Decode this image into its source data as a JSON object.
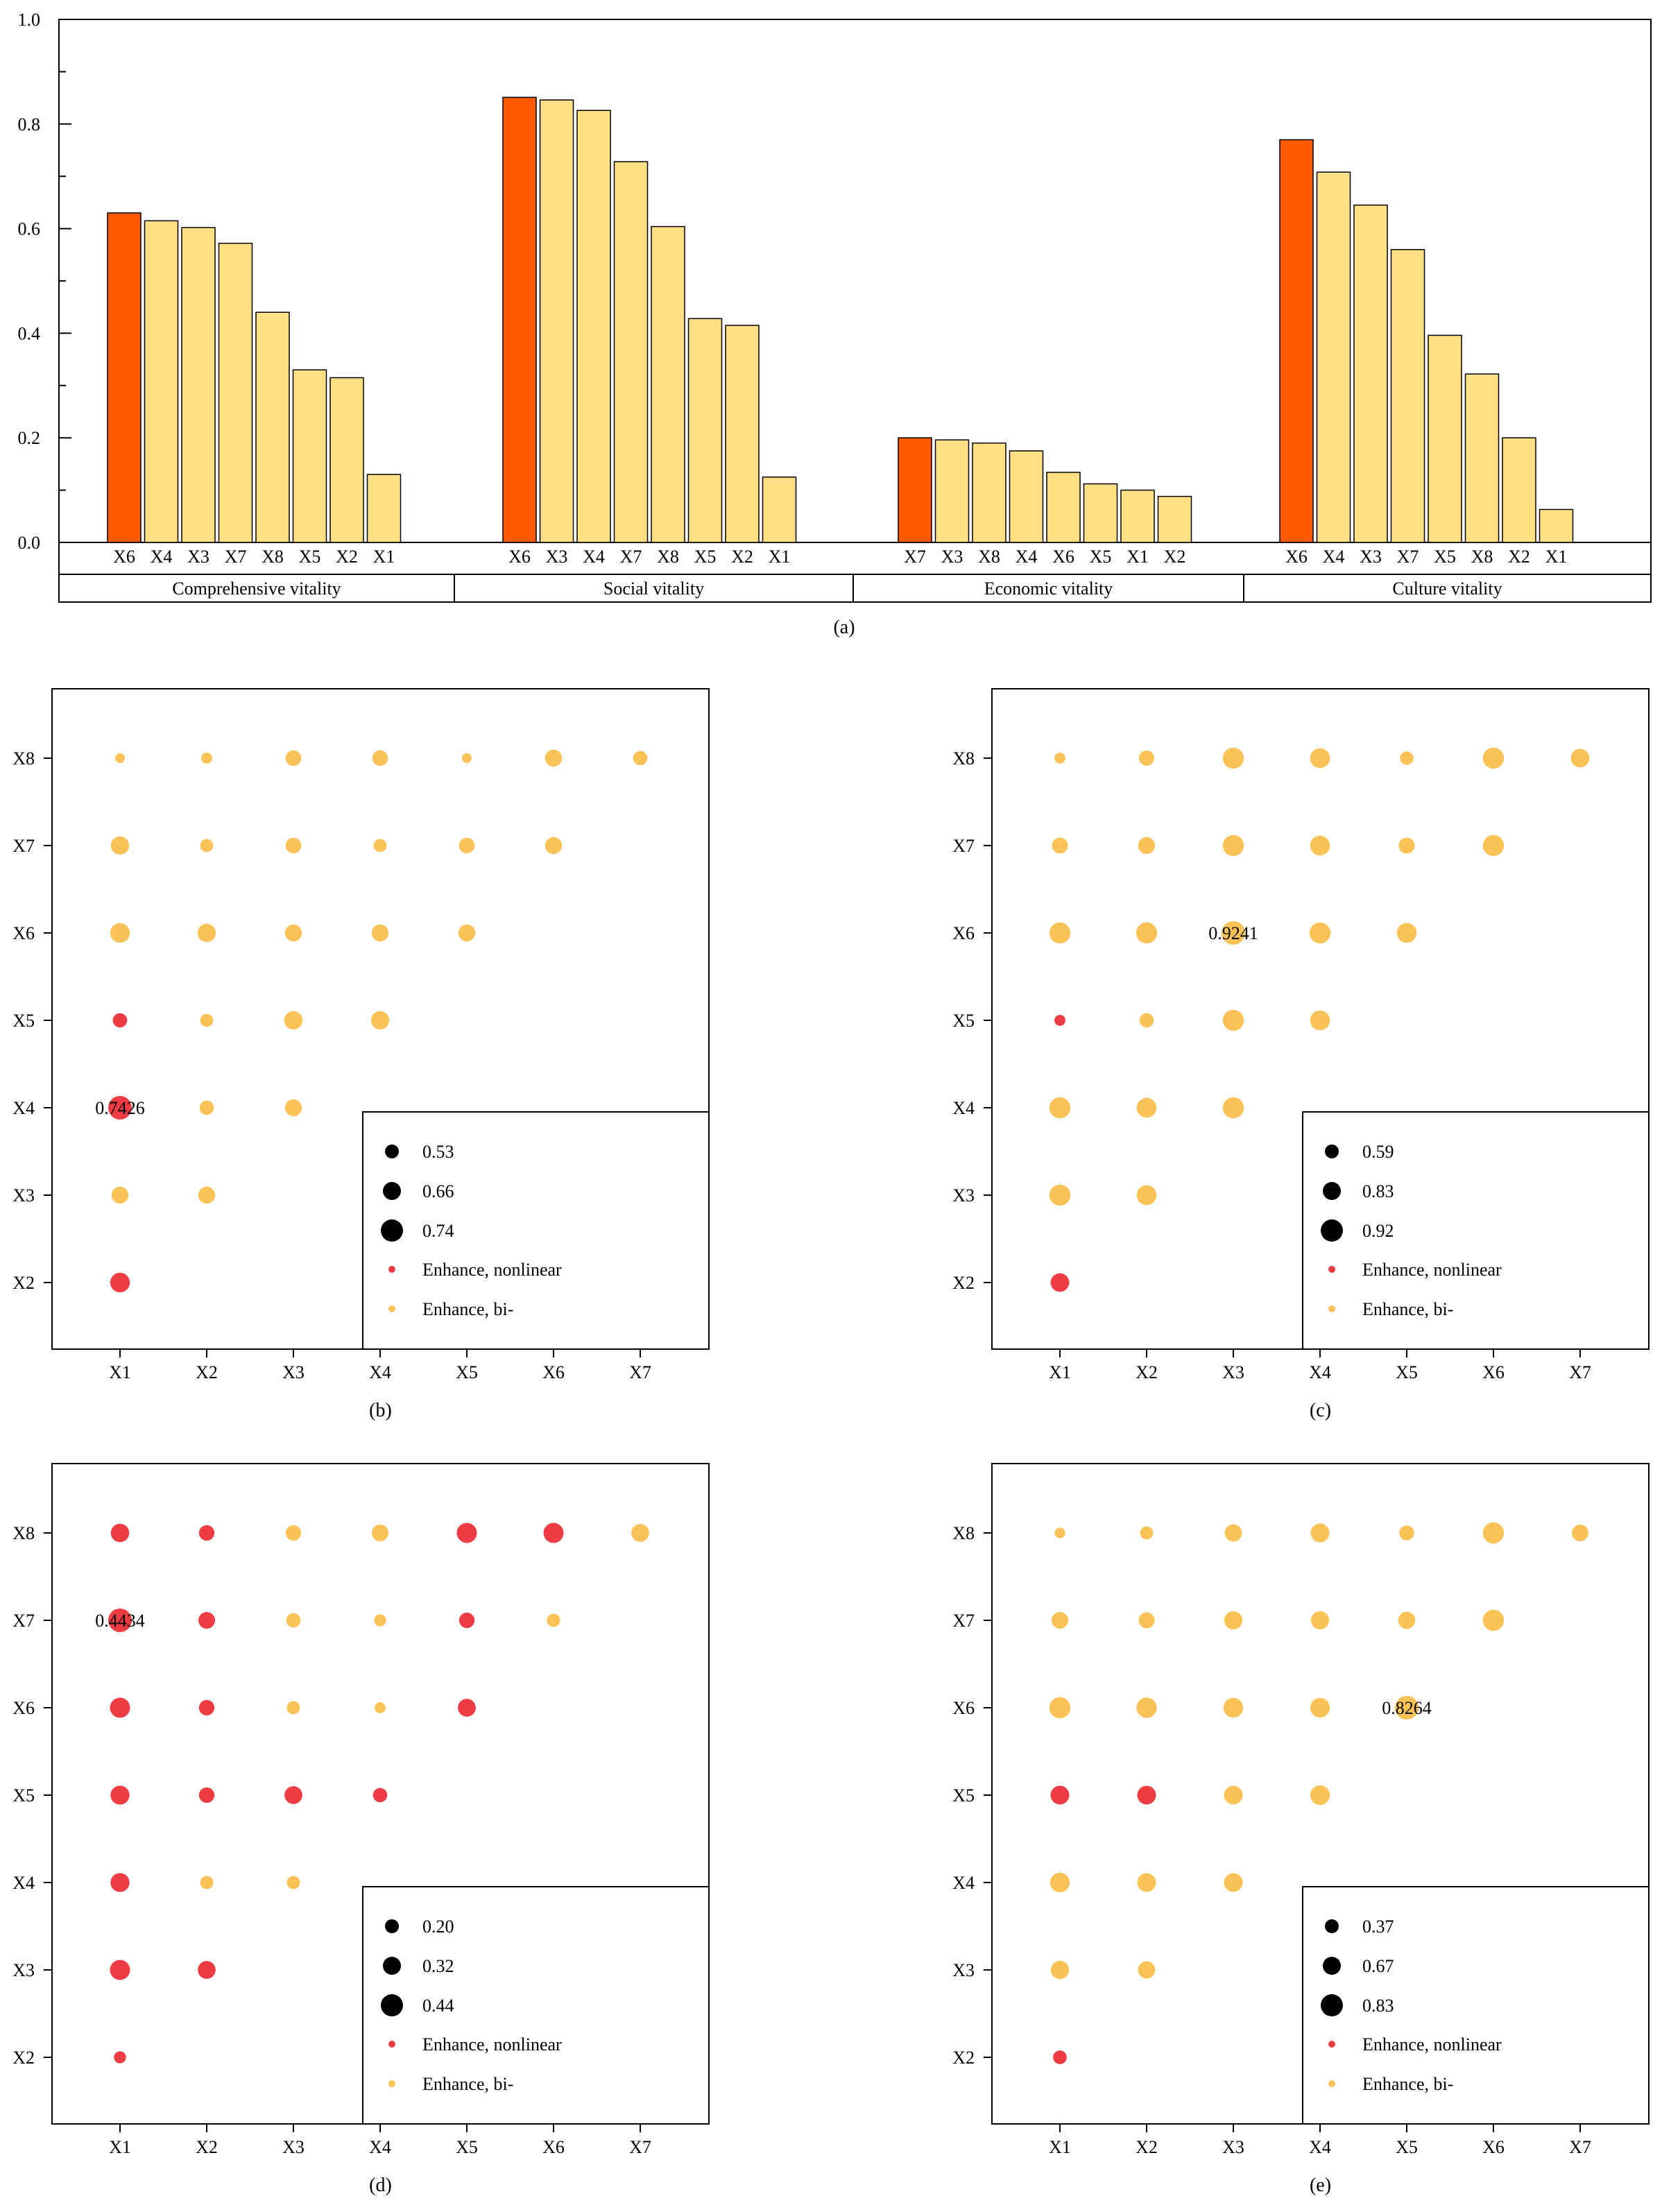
{
  "chart_data": [
    {
      "type": "bar",
      "panel": "(a)",
      "ylim": [
        0,
        1.0
      ],
      "yticks": [
        "0.0",
        "0.2",
        "0.4",
        "0.6",
        "0.8",
        "1.0"
      ],
      "colors": {
        "top": "#ff5a00",
        "other": "#ffe084"
      },
      "groups": [
        {
          "name": "Comprehensive vitality",
          "categories": [
            "X6",
            "X4",
            "X3",
            "X7",
            "X8",
            "X5",
            "X2",
            "X1"
          ],
          "values": [
            0.63,
            0.615,
            0.602,
            0.572,
            0.44,
            0.33,
            0.315,
            0.13
          ]
        },
        {
          "name": "Social vitality",
          "categories": [
            "X6",
            "X3",
            "X4",
            "X7",
            "X8",
            "X5",
            "X2",
            "X1"
          ],
          "values": [
            0.851,
            0.846,
            0.826,
            0.728,
            0.604,
            0.428,
            0.415,
            0.125
          ]
        },
        {
          "name": "Economic vitality",
          "categories": [
            "X7",
            "X3",
            "X8",
            "X4",
            "X6",
            "X5",
            "X1",
            "X2"
          ],
          "values": [
            0.2,
            0.196,
            0.19,
            0.175,
            0.134,
            0.112,
            0.1,
            0.088
          ]
        },
        {
          "name": "Culture vitality",
          "categories": [
            "X6",
            "X4",
            "X3",
            "X7",
            "X5",
            "X8",
            "X2",
            "X1"
          ],
          "values": [
            0.77,
            0.708,
            0.645,
            0.56,
            0.396,
            0.322,
            0.2,
            0.063
          ]
        }
      ]
    },
    {
      "type": "scatter",
      "panel": "(b)",
      "xcats": [
        "X1",
        "X2",
        "X3",
        "X4",
        "X5",
        "X6",
        "X7"
      ],
      "ycats": [
        "X8",
        "X7",
        "X6",
        "X5",
        "X4",
        "X3",
        "X2"
      ],
      "annotation": {
        "x": "X1",
        "y": "X4",
        "text": "0.7426"
      },
      "size_range": [
        0.53,
        0.74
      ],
      "size_legend": [
        "0.53",
        "0.66",
        "0.74"
      ],
      "type_legend": [
        "Enhance, nonlinear",
        "Enhance, bi-"
      ],
      "points": [
        {
          "x": "X1",
          "y": "X8",
          "v": 0.53,
          "t": "bi"
        },
        {
          "x": "X2",
          "y": "X8",
          "v": 0.55,
          "t": "bi"
        },
        {
          "x": "X3",
          "y": "X8",
          "v": 0.62,
          "t": "bi"
        },
        {
          "x": "X4",
          "y": "X8",
          "v": 0.62,
          "t": "bi"
        },
        {
          "x": "X5",
          "y": "X8",
          "v": 0.53,
          "t": "bi"
        },
        {
          "x": "X6",
          "y": "X8",
          "v": 0.64,
          "t": "bi"
        },
        {
          "x": "X7",
          "y": "X8",
          "v": 0.6,
          "t": "bi"
        },
        {
          "x": "X1",
          "y": "X7",
          "v": 0.66,
          "t": "bi"
        },
        {
          "x": "X2",
          "y": "X7",
          "v": 0.58,
          "t": "bi"
        },
        {
          "x": "X3",
          "y": "X7",
          "v": 0.62,
          "t": "bi"
        },
        {
          "x": "X4",
          "y": "X7",
          "v": 0.58,
          "t": "bi"
        },
        {
          "x": "X5",
          "y": "X7",
          "v": 0.62,
          "t": "bi"
        },
        {
          "x": "X6",
          "y": "X7",
          "v": 0.64,
          "t": "bi"
        },
        {
          "x": "X1",
          "y": "X6",
          "v": 0.68,
          "t": "bi"
        },
        {
          "x": "X2",
          "y": "X6",
          "v": 0.66,
          "t": "bi"
        },
        {
          "x": "X3",
          "y": "X6",
          "v": 0.64,
          "t": "bi"
        },
        {
          "x": "X4",
          "y": "X6",
          "v": 0.64,
          "t": "bi"
        },
        {
          "x": "X5",
          "y": "X6",
          "v": 0.64,
          "t": "bi"
        },
        {
          "x": "X1",
          "y": "X5",
          "v": 0.6,
          "t": "nonlinear"
        },
        {
          "x": "X2",
          "y": "X5",
          "v": 0.58,
          "t": "bi"
        },
        {
          "x": "X3",
          "y": "X5",
          "v": 0.66,
          "t": "bi"
        },
        {
          "x": "X4",
          "y": "X5",
          "v": 0.66,
          "t": "bi"
        },
        {
          "x": "X1",
          "y": "X4",
          "v": 0.74,
          "t": "nonlinear"
        },
        {
          "x": "X2",
          "y": "X4",
          "v": 0.6,
          "t": "bi"
        },
        {
          "x": "X3",
          "y": "X4",
          "v": 0.64,
          "t": "bi"
        },
        {
          "x": "X1",
          "y": "X3",
          "v": 0.64,
          "t": "bi"
        },
        {
          "x": "X2",
          "y": "X3",
          "v": 0.64,
          "t": "bi"
        },
        {
          "x": "X1",
          "y": "X2",
          "v": 0.68,
          "t": "nonlinear"
        }
      ]
    },
    {
      "type": "scatter",
      "panel": "(c)",
      "xcats": [
        "X1",
        "X2",
        "X3",
        "X4",
        "X5",
        "X6",
        "X7"
      ],
      "ycats": [
        "X8",
        "X7",
        "X6",
        "X5",
        "X4",
        "X3",
        "X2"
      ],
      "annotation": {
        "x": "X3",
        "y": "X6",
        "text": "0.9241"
      },
      "size_range": [
        0.59,
        0.92
      ],
      "size_legend": [
        "0.59",
        "0.83",
        "0.92"
      ],
      "type_legend": [
        "Enhance, nonlinear",
        "Enhance, bi-"
      ],
      "points": [
        {
          "x": "X1",
          "y": "X8",
          "v": 0.62,
          "t": "bi"
        },
        {
          "x": "X2",
          "y": "X8",
          "v": 0.72,
          "t": "bi"
        },
        {
          "x": "X3",
          "y": "X8",
          "v": 0.86,
          "t": "bi"
        },
        {
          "x": "X4",
          "y": "X8",
          "v": 0.83,
          "t": "bi"
        },
        {
          "x": "X5",
          "y": "X8",
          "v": 0.68,
          "t": "bi"
        },
        {
          "x": "X6",
          "y": "X8",
          "v": 0.86,
          "t": "bi"
        },
        {
          "x": "X7",
          "y": "X8",
          "v": 0.8,
          "t": "bi"
        },
        {
          "x": "X1",
          "y": "X7",
          "v": 0.74,
          "t": "bi"
        },
        {
          "x": "X2",
          "y": "X7",
          "v": 0.76,
          "t": "bi"
        },
        {
          "x": "X3",
          "y": "X7",
          "v": 0.86,
          "t": "bi"
        },
        {
          "x": "X4",
          "y": "X7",
          "v": 0.83,
          "t": "bi"
        },
        {
          "x": "X5",
          "y": "X7",
          "v": 0.74,
          "t": "bi"
        },
        {
          "x": "X6",
          "y": "X7",
          "v": 0.86,
          "t": "bi"
        },
        {
          "x": "X1",
          "y": "X6",
          "v": 0.86,
          "t": "bi"
        },
        {
          "x": "X2",
          "y": "X6",
          "v": 0.86,
          "t": "bi"
        },
        {
          "x": "X3",
          "y": "X6",
          "v": 0.92,
          "t": "bi"
        },
        {
          "x": "X4",
          "y": "X6",
          "v": 0.86,
          "t": "bi"
        },
        {
          "x": "X5",
          "y": "X6",
          "v": 0.83,
          "t": "bi"
        },
        {
          "x": "X1",
          "y": "X5",
          "v": 0.62,
          "t": "nonlinear"
        },
        {
          "x": "X2",
          "y": "X5",
          "v": 0.7,
          "t": "bi"
        },
        {
          "x": "X3",
          "y": "X5",
          "v": 0.86,
          "t": "bi"
        },
        {
          "x": "X4",
          "y": "X5",
          "v": 0.83,
          "t": "bi"
        },
        {
          "x": "X1",
          "y": "X4",
          "v": 0.86,
          "t": "bi"
        },
        {
          "x": "X2",
          "y": "X4",
          "v": 0.83,
          "t": "bi"
        },
        {
          "x": "X3",
          "y": "X4",
          "v": 0.86,
          "t": "bi"
        },
        {
          "x": "X1",
          "y": "X3",
          "v": 0.86,
          "t": "bi"
        },
        {
          "x": "X2",
          "y": "X3",
          "v": 0.83,
          "t": "bi"
        },
        {
          "x": "X1",
          "y": "X2",
          "v": 0.8,
          "t": "nonlinear"
        }
      ]
    },
    {
      "type": "scatter",
      "panel": "(d)",
      "xcats": [
        "X1",
        "X2",
        "X3",
        "X4",
        "X5",
        "X6",
        "X7"
      ],
      "ycats": [
        "X8",
        "X7",
        "X6",
        "X5",
        "X4",
        "X3",
        "X2"
      ],
      "annotation": {
        "x": "X1",
        "y": "X7",
        "text": "0.4434"
      },
      "size_range": [
        0.2,
        0.44
      ],
      "size_legend": [
        "0.20",
        "0.32",
        "0.44"
      ],
      "type_legend": [
        "Enhance, nonlinear",
        "Enhance, bi-"
      ],
      "points": [
        {
          "x": "X1",
          "y": "X8",
          "v": 0.35,
          "t": "nonlinear"
        },
        {
          "x": "X2",
          "y": "X8",
          "v": 0.3,
          "t": "nonlinear"
        },
        {
          "x": "X3",
          "y": "X8",
          "v": 0.3,
          "t": "bi"
        },
        {
          "x": "X4",
          "y": "X8",
          "v": 0.32,
          "t": "bi"
        },
        {
          "x": "X5",
          "y": "X8",
          "v": 0.38,
          "t": "nonlinear"
        },
        {
          "x": "X6",
          "y": "X8",
          "v": 0.38,
          "t": "nonlinear"
        },
        {
          "x": "X7",
          "y": "X8",
          "v": 0.34,
          "t": "bi"
        },
        {
          "x": "X1",
          "y": "X7",
          "v": 0.44,
          "t": "nonlinear"
        },
        {
          "x": "X2",
          "y": "X7",
          "v": 0.32,
          "t": "nonlinear"
        },
        {
          "x": "X3",
          "y": "X7",
          "v": 0.28,
          "t": "bi"
        },
        {
          "x": "X4",
          "y": "X7",
          "v": 0.24,
          "t": "bi"
        },
        {
          "x": "X5",
          "y": "X7",
          "v": 0.3,
          "t": "nonlinear"
        },
        {
          "x": "X6",
          "y": "X7",
          "v": 0.26,
          "t": "bi"
        },
        {
          "x": "X1",
          "y": "X6",
          "v": 0.38,
          "t": "nonlinear"
        },
        {
          "x": "X2",
          "y": "X6",
          "v": 0.3,
          "t": "nonlinear"
        },
        {
          "x": "X3",
          "y": "X6",
          "v": 0.26,
          "t": "bi"
        },
        {
          "x": "X4",
          "y": "X6",
          "v": 0.22,
          "t": "bi"
        },
        {
          "x": "X5",
          "y": "X6",
          "v": 0.34,
          "t": "nonlinear"
        },
        {
          "x": "X1",
          "y": "X5",
          "v": 0.36,
          "t": "nonlinear"
        },
        {
          "x": "X2",
          "y": "X5",
          "v": 0.3,
          "t": "nonlinear"
        },
        {
          "x": "X3",
          "y": "X5",
          "v": 0.34,
          "t": "nonlinear"
        },
        {
          "x": "X4",
          "y": "X5",
          "v": 0.28,
          "t": "nonlinear"
        },
        {
          "x": "X1",
          "y": "X4",
          "v": 0.36,
          "t": "nonlinear"
        },
        {
          "x": "X2",
          "y": "X4",
          "v": 0.26,
          "t": "bi"
        },
        {
          "x": "X3",
          "y": "X4",
          "v": 0.26,
          "t": "bi"
        },
        {
          "x": "X1",
          "y": "X3",
          "v": 0.38,
          "t": "nonlinear"
        },
        {
          "x": "X2",
          "y": "X3",
          "v": 0.34,
          "t": "nonlinear"
        },
        {
          "x": "X1",
          "y": "X2",
          "v": 0.24,
          "t": "nonlinear"
        }
      ]
    },
    {
      "type": "scatter",
      "panel": "(e)",
      "xcats": [
        "X1",
        "X2",
        "X3",
        "X4",
        "X5",
        "X6",
        "X7"
      ],
      "ycats": [
        "X8",
        "X7",
        "X6",
        "X5",
        "X4",
        "X3",
        "X2"
      ],
      "annotation": {
        "x": "X5",
        "y": "X6",
        "text": "0.8264"
      },
      "size_range": [
        0.37,
        0.83
      ],
      "size_legend": [
        "0.37",
        "0.67",
        "0.83"
      ],
      "type_legend": [
        "Enhance, nonlinear",
        "Enhance, bi-"
      ],
      "points": [
        {
          "x": "X1",
          "y": "X8",
          "v": 0.4,
          "t": "bi"
        },
        {
          "x": "X2",
          "y": "X8",
          "v": 0.48,
          "t": "bi"
        },
        {
          "x": "X3",
          "y": "X8",
          "v": 0.62,
          "t": "bi"
        },
        {
          "x": "X4",
          "y": "X8",
          "v": 0.67,
          "t": "bi"
        },
        {
          "x": "X5",
          "y": "X8",
          "v": 0.54,
          "t": "bi"
        },
        {
          "x": "X6",
          "y": "X8",
          "v": 0.75,
          "t": "bi"
        },
        {
          "x": "X7",
          "y": "X8",
          "v": 0.6,
          "t": "bi"
        },
        {
          "x": "X1",
          "y": "X7",
          "v": 0.6,
          "t": "bi"
        },
        {
          "x": "X2",
          "y": "X7",
          "v": 0.58,
          "t": "bi"
        },
        {
          "x": "X3",
          "y": "X7",
          "v": 0.65,
          "t": "bi"
        },
        {
          "x": "X4",
          "y": "X7",
          "v": 0.65,
          "t": "bi"
        },
        {
          "x": "X5",
          "y": "X7",
          "v": 0.62,
          "t": "bi"
        },
        {
          "x": "X6",
          "y": "X7",
          "v": 0.75,
          "t": "bi"
        },
        {
          "x": "X1",
          "y": "X6",
          "v": 0.75,
          "t": "bi"
        },
        {
          "x": "X2",
          "y": "X6",
          "v": 0.72,
          "t": "bi"
        },
        {
          "x": "X3",
          "y": "X6",
          "v": 0.7,
          "t": "bi"
        },
        {
          "x": "X4",
          "y": "X6",
          "v": 0.7,
          "t": "bi"
        },
        {
          "x": "X5",
          "y": "X6",
          "v": 0.83,
          "t": "bi"
        },
        {
          "x": "X1",
          "y": "X5",
          "v": 0.67,
          "t": "nonlinear"
        },
        {
          "x": "X2",
          "y": "X5",
          "v": 0.67,
          "t": "nonlinear"
        },
        {
          "x": "X3",
          "y": "X5",
          "v": 0.67,
          "t": "bi"
        },
        {
          "x": "X4",
          "y": "X5",
          "v": 0.7,
          "t": "bi"
        },
        {
          "x": "X1",
          "y": "X4",
          "v": 0.7,
          "t": "bi"
        },
        {
          "x": "X2",
          "y": "X4",
          "v": 0.67,
          "t": "bi"
        },
        {
          "x": "X3",
          "y": "X4",
          "v": 0.67,
          "t": "bi"
        },
        {
          "x": "X1",
          "y": "X3",
          "v": 0.65,
          "t": "bi"
        },
        {
          "x": "X2",
          "y": "X3",
          "v": 0.62,
          "t": "bi"
        },
        {
          "x": "X1",
          "y": "X2",
          "v": 0.5,
          "t": "nonlinear"
        }
      ]
    }
  ],
  "style": {
    "nonlinear_color": "#ee3c44",
    "bi_color": "#fbc258",
    "legend_size_color": "#000000"
  }
}
